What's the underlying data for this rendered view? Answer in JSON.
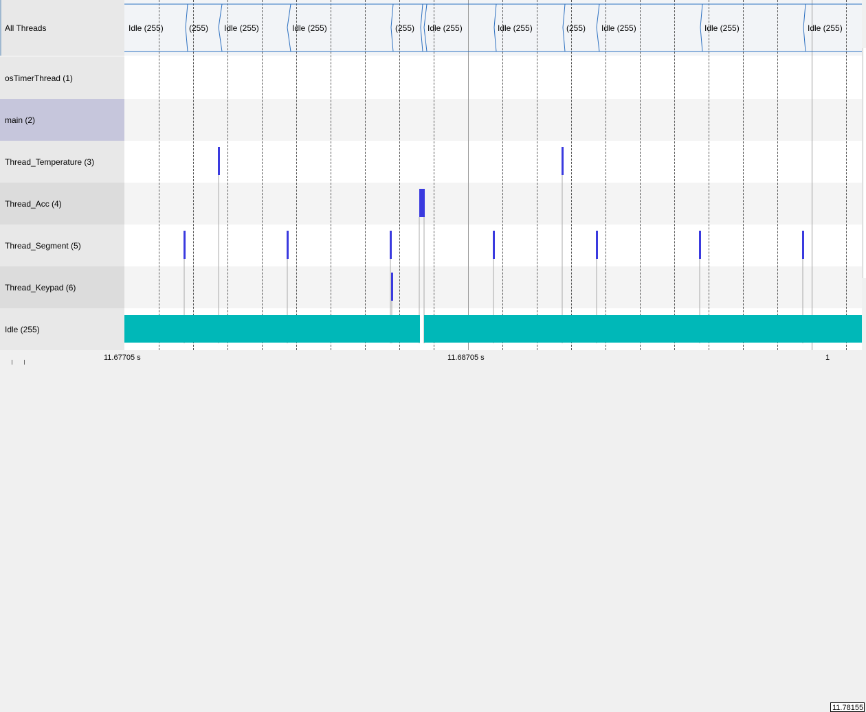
{
  "threads": [
    {
      "label": "All Threads"
    },
    {
      "label": "osTimerThread (1)"
    },
    {
      "label": "main (2)"
    },
    {
      "label": "Thread_Temperature (3)"
    },
    {
      "label": "Thread_Acc (4)"
    },
    {
      "label": "Thread_Segment (5)"
    },
    {
      "label": "Thread_Keypad (6)"
    },
    {
      "label": "Idle (255)"
    }
  ],
  "all_threads_segments": [
    {
      "text": "Idle (255)"
    },
    {
      "text": "(255)"
    },
    {
      "text": "Idle (255)"
    },
    {
      "text": "Idle (255)"
    },
    {
      "text": "(255)"
    },
    {
      "text": "Idle (255)"
    },
    {
      "text": "Idle (255)"
    },
    {
      "text": "(255)"
    },
    {
      "text": "Idle (255)"
    },
    {
      "text": "Idle (255)"
    },
    {
      "text": "Idle (255)"
    }
  ],
  "axis": {
    "ticks": [
      {
        "label": "11.67705 s"
      },
      {
        "label": "11.68705 s"
      },
      {
        "label": "1"
      }
    ],
    "cursor_value": "11.78155"
  },
  "colors": {
    "thread_bar": "#3a3adf",
    "idle_bar": "#00b8b8",
    "switch_line": "#2b6fc0"
  }
}
